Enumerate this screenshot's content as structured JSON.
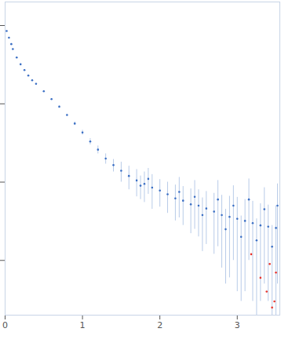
{
  "chart_data": {
    "type": "scatter",
    "log": "y",
    "tick_labels": "x",
    "xlim": [
      0,
      3.55
    ],
    "xticks": [
      0,
      1,
      2,
      3
    ],
    "ylim": [
      0.002,
      20
    ],
    "yticks": [
      0.01,
      0.1,
      1,
      10
    ],
    "series": [
      {
        "color": "#3b6fc4",
        "marker": "circle",
        "x": [
          0.02,
          0.05,
          0.08,
          0.1,
          0.15,
          0.2,
          0.25,
          0.3,
          0.35,
          0.4,
          0.5,
          0.6,
          0.7,
          0.8,
          0.9,
          1.0,
          1.1,
          1.2,
          1.3,
          1.4,
          1.5,
          1.6,
          1.7,
          1.75,
          1.8,
          1.85,
          1.9,
          2.0,
          2.1,
          2.2,
          2.25,
          2.3,
          2.4,
          2.45,
          2.5,
          2.55,
          2.6,
          2.7,
          2.75,
          2.8,
          2.85,
          2.9,
          2.95,
          3.0,
          3.05,
          3.1,
          3.15,
          3.2,
          3.25,
          3.3,
          3.35,
          3.4,
          3.45,
          3.5,
          3.52
        ],
        "values": [
          8.5,
          7.0,
          5.8,
          5.0,
          3.9,
          3.2,
          2.7,
          2.3,
          2.0,
          1.8,
          1.45,
          1.15,
          0.92,
          0.72,
          0.56,
          0.43,
          0.33,
          0.26,
          0.2,
          0.165,
          0.14,
          0.12,
          0.105,
          0.09,
          0.095,
          0.11,
          0.085,
          0.078,
          0.07,
          0.062,
          0.075,
          0.058,
          0.052,
          0.065,
          0.05,
          0.038,
          0.046,
          0.042,
          0.06,
          0.038,
          0.025,
          0.036,
          0.05,
          0.034,
          0.02,
          0.032,
          0.06,
          0.03,
          0.018,
          0.028,
          0.045,
          0.027,
          0.015,
          0.026,
          0.05
        ],
        "errors": [
          0.05,
          0.04,
          0.03,
          0.03,
          0.02,
          0.02,
          0.02,
          0.02,
          0.02,
          0.02,
          0.02,
          0.02,
          0.02,
          0.02,
          0.03,
          0.03,
          0.03,
          0.03,
          0.03,
          0.03,
          0.04,
          0.04,
          0.04,
          0.03,
          0.04,
          0.04,
          0.04,
          0.03,
          0.03,
          0.03,
          0.04,
          0.03,
          0.03,
          0.04,
          0.03,
          0.025,
          0.03,
          0.03,
          0.045,
          0.03,
          0.02,
          0.03,
          0.04,
          0.03,
          0.017,
          0.028,
          0.05,
          0.027,
          0.016,
          0.025,
          0.04,
          0.024,
          0.013,
          0.024,
          0.045
        ]
      },
      {
        "color": "#e8322a",
        "marker": "circle",
        "x": [
          3.18,
          3.3,
          3.38,
          3.42,
          3.45,
          3.48,
          3.5
        ],
        "values": [
          0.012,
          0.006,
          0.004,
          0.009,
          0.0025,
          0.003,
          0.007
        ]
      }
    ]
  }
}
